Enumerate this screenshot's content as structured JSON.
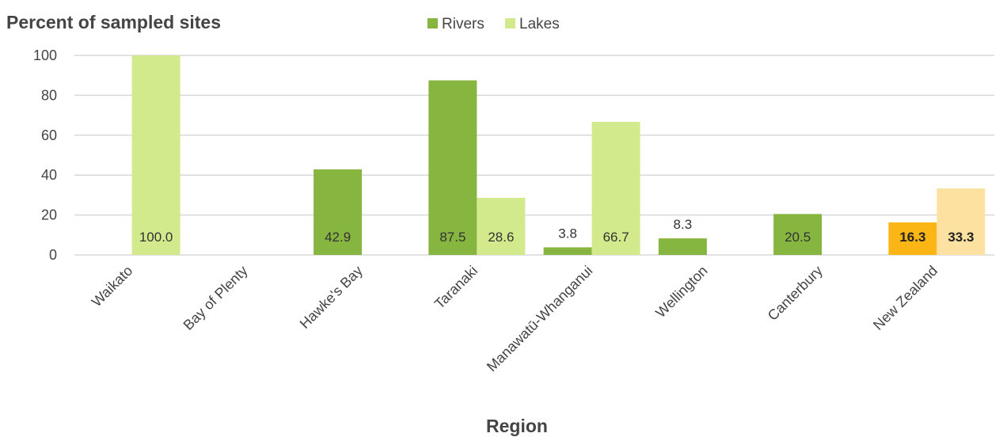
{
  "chart_data": {
    "type": "bar",
    "ylabel": "Percent of sampled sites",
    "xlabel": "Region",
    "ylim": [
      0,
      100
    ],
    "yticks": [
      0,
      20,
      40,
      60,
      80,
      100
    ],
    "grid": true,
    "legend_position": "top",
    "categories": [
      "Waikato",
      "Bay of Plenty",
      "Hawke's Bay",
      "Taranaki",
      "Manawatū-Whanganui",
      "Wellington",
      "Canterbury",
      "New Zealand"
    ],
    "series": [
      {
        "name": "Rivers",
        "color": "#86b540",
        "values": [
          null,
          null,
          42.9,
          87.5,
          3.8,
          8.3,
          20.5,
          16.3
        ],
        "labels": [
          "",
          "",
          "42.9",
          "87.5",
          "3.8",
          "8.3",
          "20.5",
          "16.3"
        ]
      },
      {
        "name": "Lakes",
        "color": "#d2ea8c",
        "values": [
          100.0,
          null,
          null,
          28.6,
          66.7,
          null,
          null,
          33.3
        ],
        "labels": [
          "100.0",
          "",
          "",
          "28.6",
          "66.7",
          "",
          "",
          "33.3"
        ]
      }
    ],
    "highlight": {
      "category": "New Zealand",
      "colors": [
        "#fbb515",
        "#fde1a0"
      ],
      "bold_labels": true
    }
  }
}
